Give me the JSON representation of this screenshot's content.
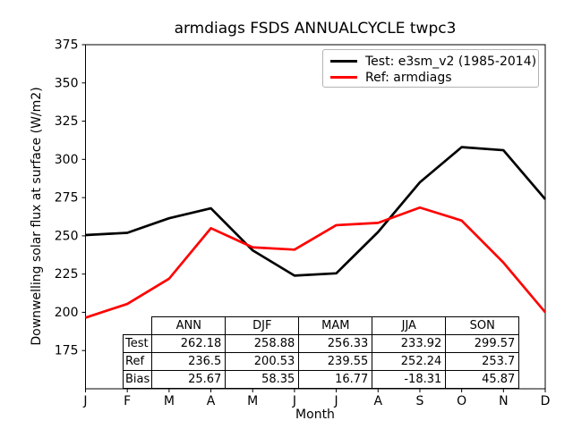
{
  "chart_data": {
    "type": "line",
    "title": "armdiags FSDS ANNUALCYCLE twpc3",
    "xlabel": "Month",
    "ylabel": "Downwelling solar flux at surface (W/m2)",
    "x_tick_labels": [
      "J",
      "F",
      "M",
      "A",
      "M",
      "J",
      "J",
      "A",
      "S",
      "O",
      "N",
      "D"
    ],
    "y_ticks": [
      175,
      200,
      225,
      250,
      275,
      300,
      325,
      350,
      375
    ],
    "ylim": [
      150,
      375
    ],
    "grid": false,
    "legend_position": "upper right",
    "series": [
      {
        "name": "Test: e3sm_v2 (1985-2014)",
        "color": "#000000",
        "values": [
          250.5,
          252.0,
          261.5,
          268.0,
          240.5,
          224.0,
          225.5,
          252.5,
          285.0,
          308.0,
          306.0,
          274.0
        ]
      },
      {
        "name": "Ref: armdiags",
        "color": "#ff0000",
        "values": [
          196.5,
          205.5,
          222.0,
          255.0,
          242.5,
          241.0,
          257.0,
          258.5,
          268.5,
          260.0,
          232.5,
          200.0
        ]
      }
    ],
    "stats_table": {
      "col_headers": [
        "ANN",
        "DJF",
        "MAM",
        "JJA",
        "SON"
      ],
      "rows": [
        {
          "label": "Test",
          "cells": [
            "262.18",
            "258.88",
            "256.33",
            "233.92",
            "299.57"
          ]
        },
        {
          "label": "Ref",
          "cells": [
            "236.5",
            "200.53",
            "239.55",
            "252.24",
            "253.7"
          ]
        },
        {
          "label": "Bias",
          "cells": [
            "25.67",
            "58.35",
            "16.77",
            "-18.31",
            "45.87"
          ]
        }
      ]
    }
  }
}
